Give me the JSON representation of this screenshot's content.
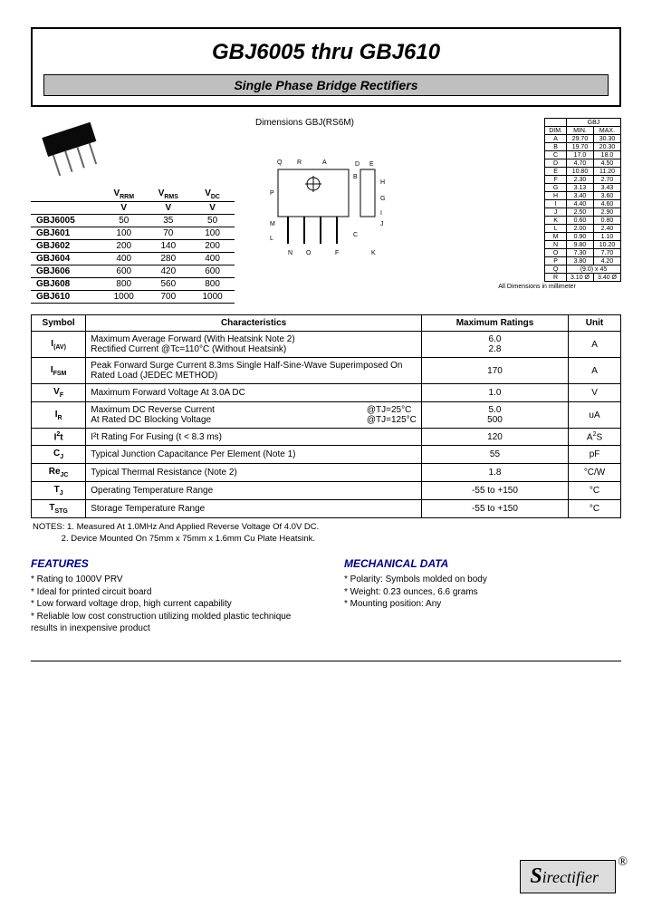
{
  "title": "GBJ6005 thru GBJ610",
  "subtitle": "Single Phase Bridge Rectifiers",
  "dimensions_label": "Dimensions GBJ(RS6M)",
  "ratings": {
    "headers": [
      "",
      "VRRM",
      "VRMS",
      "VDC"
    ],
    "units": [
      "",
      "V",
      "V",
      "V"
    ],
    "rows": [
      [
        "GBJ6005",
        "50",
        "35",
        "50"
      ],
      [
        "GBJ601",
        "100",
        "70",
        "100"
      ],
      [
        "GBJ602",
        "200",
        "140",
        "200"
      ],
      [
        "GBJ604",
        "400",
        "280",
        "400"
      ],
      [
        "GBJ606",
        "600",
        "420",
        "600"
      ],
      [
        "GBJ608",
        "800",
        "560",
        "800"
      ],
      [
        "GBJ610",
        "1000",
        "700",
        "1000"
      ]
    ]
  },
  "dimensions": {
    "header_top": "GBJ",
    "cols": [
      "DIM.",
      "MIN.",
      "MAX."
    ],
    "rows": [
      [
        "A",
        "29.70",
        "30.30"
      ],
      [
        "B",
        "19.70",
        "20.30"
      ],
      [
        "C",
        "17.0",
        "18.0"
      ],
      [
        "D",
        "4.70",
        "4.50"
      ],
      [
        "E",
        "10.80",
        "11.20"
      ],
      [
        "F",
        "2.30",
        "2.70"
      ],
      [
        "G",
        "3.13",
        "3.43"
      ],
      [
        "H",
        "3.40",
        "3.60"
      ],
      [
        "I",
        "4.40",
        "4.60"
      ],
      [
        "J",
        "2.50",
        "2.90"
      ],
      [
        "K",
        "0.60",
        "0.80"
      ],
      [
        "L",
        "2.00",
        "2.40"
      ],
      [
        "M",
        "0.90",
        "1.10"
      ],
      [
        "N",
        "9.80",
        "10.20"
      ],
      [
        "O",
        "7.30",
        "7.70"
      ],
      [
        "P",
        "3.80",
        "4.20"
      ],
      [
        "Q",
        "(9.0) x 45",
        ""
      ],
      [
        "R",
        "3.10 Ø",
        "3.40 Ø"
      ]
    ],
    "caption": "All Dimensions in millimeter"
  },
  "characteristics": {
    "headers": [
      "Symbol",
      "Characteristics",
      "Maximum Ratings",
      "Unit"
    ],
    "rows": [
      {
        "sym": "I(AV)",
        "char": "Maximum Average Forward (With Heatsink Note 2)\nRectified Current    @Tc=110°C (Without Heatsink)",
        "max": "6.0\n2.8",
        "unit": "A"
      },
      {
        "sym": "IFSM",
        "char": "Peak Forward Surge Current 8.3ms Single Half-Sine-Wave Superimposed On Rated Load (JEDEC METHOD)",
        "max": "170",
        "unit": "A"
      },
      {
        "sym": "VF",
        "char": "Maximum Forward Voltage At 3.0A DC",
        "max": "1.0",
        "unit": "V"
      },
      {
        "sym": "IR",
        "char_l": "Maximum DC Reverse Current\nAt Rated DC Blocking Voltage",
        "char_r": "@TJ=25°C\n@TJ=125°C",
        "max": "5.0\n500",
        "unit": "uA"
      },
      {
        "sym": "I²t",
        "char": "I²t Rating For Fusing (t < 8.3 ms)",
        "max": "120",
        "unit": "A²S"
      },
      {
        "sym": "CJ",
        "char": "Typical Junction Capacitance Per Element (Note 1)",
        "max": "55",
        "unit": "pF"
      },
      {
        "sym": "ReJC",
        "char": "Typical Thermal Resistance (Note 2)",
        "max": "1.8",
        "unit": "°C/W"
      },
      {
        "sym": "TJ",
        "char": "Operating Temperature Range",
        "max": "-55 to +150",
        "unit": "°C"
      },
      {
        "sym": "TSTG",
        "char": "Storage Temperature Range",
        "max": "-55 to +150",
        "unit": "°C"
      }
    ]
  },
  "notes": "NOTES: 1. Measured At 1.0MHz And Applied Reverse Voltage Of 4.0V DC.\n            2. Device Mounted On 75mm x 75mm x 1.6mm Cu Plate Heatsink.",
  "features": {
    "title": "FEATURES",
    "items": [
      "Rating to 1000V PRV",
      "Ideal for printed circuit board",
      "Low forward voltage drop, high current capability",
      "Reliable low cost construction utilizing molded plastic technique results in inexpensive product"
    ]
  },
  "mechanical": {
    "title": "MECHANICAL DATA",
    "items": [
      "Polarity: Symbols molded on body",
      "Weight: 0.23 ounces, 6.6 grams",
      "Mounting position: Any"
    ]
  },
  "logo": "Sirectifier"
}
